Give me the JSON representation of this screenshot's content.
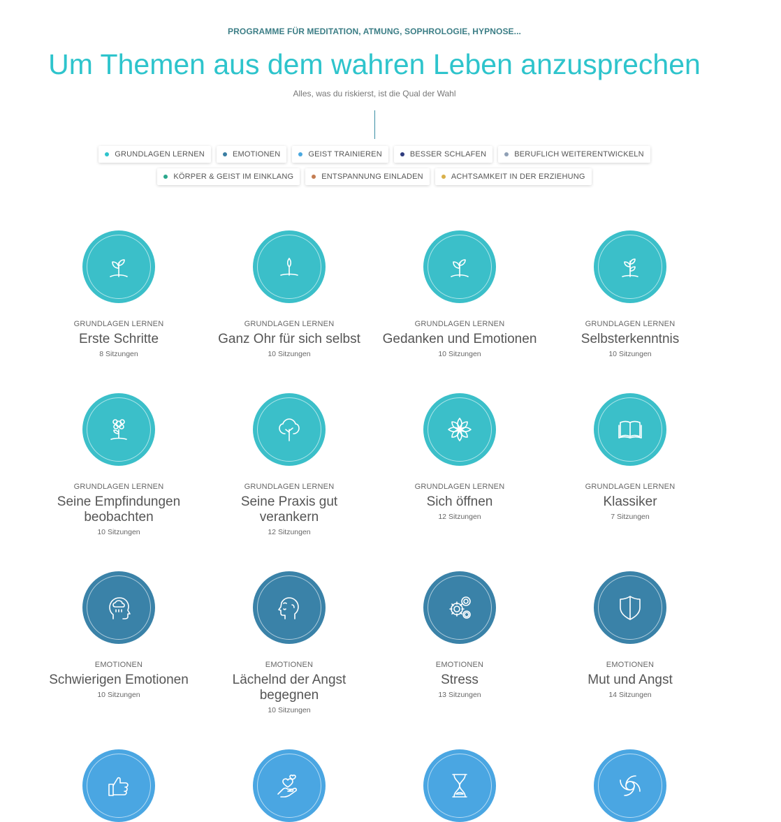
{
  "header": {
    "eyebrow": "PROGRAMME FÜR MEDITATION, ATMUNG, SOPHROLOGIE, HYPNOSE...",
    "title": "Um Themen aus dem wahren Leben anzusprechen",
    "subtitle": "Alles, was du riskierst, ist die Qual der Wahl"
  },
  "filters": [
    {
      "label": "GRUNDLAGEN LERNEN",
      "color": "#2ec4cc"
    },
    {
      "label": "EMOTIONEN",
      "color": "#3a7ea3"
    },
    {
      "label": "GEIST TRAINIEREN",
      "color": "#4aa8e0"
    },
    {
      "label": "BESSER SCHLAFEN",
      "color": "#2f3c7e"
    },
    {
      "label": "BERUFLICH WEITERENTWICKELN",
      "color": "#8fa0b5"
    },
    {
      "label": "KÖRPER & GEIST IM EINKLANG",
      "color": "#2aa78c"
    },
    {
      "label": "ENTSPANNUNG EINLADEN",
      "color": "#c47d52"
    },
    {
      "label": "ACHTSAMKEIT IN DER ERZIEHUNG",
      "color": "#d9b04a"
    }
  ],
  "programs": [
    {
      "category": "GRUNDLAGEN LERNEN",
      "name": "Erste Schritte",
      "sessions": "8 Sitzungen",
      "icon": "sprout-icon",
      "color": "#3bbfc9"
    },
    {
      "category": "GRUNDLAGEN LERNEN",
      "name": "Ganz Ohr für sich selbst",
      "sessions": "10 Sitzungen",
      "icon": "seedling-icon",
      "color": "#3bbfc9"
    },
    {
      "category": "GRUNDLAGEN LERNEN",
      "name": "Gedanken und Emotionen",
      "sessions": "10 Sitzungen",
      "icon": "sprout-icon",
      "color": "#3bbfc9"
    },
    {
      "category": "GRUNDLAGEN LERNEN",
      "name": "Selbsterkenntnis",
      "sessions": "10 Sitzungen",
      "icon": "plant-icon",
      "color": "#3bbfc9"
    },
    {
      "category": "GRUNDLAGEN LERNEN",
      "name": "Seine Empfindungen beobachten",
      "sessions": "10 Sitzungen",
      "icon": "flower-icon",
      "color": "#3bbfc9"
    },
    {
      "category": "GRUNDLAGEN LERNEN",
      "name": "Seine Praxis gut verankern",
      "sessions": "12 Sitzungen",
      "icon": "tree-icon",
      "color": "#3bbfc9"
    },
    {
      "category": "GRUNDLAGEN LERNEN",
      "name": "Sich öffnen",
      "sessions": "12 Sitzungen",
      "icon": "lotus-icon",
      "color": "#3bbfc9"
    },
    {
      "category": "GRUNDLAGEN LERNEN",
      "name": "Klassiker",
      "sessions": "7 Sitzungen",
      "icon": "book-icon",
      "color": "#3bbfc9"
    },
    {
      "category": "EMOTIONEN",
      "name": "Schwierigen Emotionen",
      "sessions": "10 Sitzungen",
      "icon": "head-cloud-icon",
      "color": "#3a82a8"
    },
    {
      "category": "EMOTIONEN",
      "name": "Lächelnd der Angst begegnen",
      "sessions": "10 Sitzungen",
      "icon": "face-profile-icon",
      "color": "#3a82a8"
    },
    {
      "category": "EMOTIONEN",
      "name": "Stress",
      "sessions": "13 Sitzungen",
      "icon": "gears-icon",
      "color": "#3a82a8"
    },
    {
      "category": "EMOTIONEN",
      "name": "Mut und Angst",
      "sessions": "14 Sitzungen",
      "icon": "shield-icon",
      "color": "#3a82a8"
    },
    {
      "category": "",
      "name": "",
      "sessions": "",
      "icon": "thumbs-up-icon",
      "color": "#4aa6e2"
    },
    {
      "category": "",
      "name": "",
      "sessions": "",
      "icon": "hand-hearts-icon",
      "color": "#4aa6e2"
    },
    {
      "category": "",
      "name": "",
      "sessions": "",
      "icon": "hourglass-icon",
      "color": "#4aa6e2"
    },
    {
      "category": "",
      "name": "",
      "sessions": "",
      "icon": "swirl-icon",
      "color": "#4aa6e2"
    }
  ]
}
